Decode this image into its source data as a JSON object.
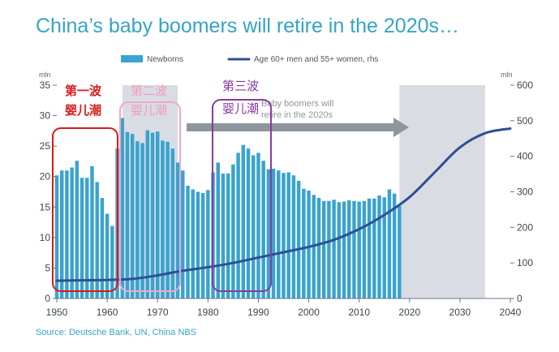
{
  "page": {
    "title": "China’s baby boomers will retire in the 2020s…",
    "source": "Source: Deutsche Bank, UN, China NBS"
  },
  "chart_data": {
    "type": "bar",
    "left_axis": {
      "unit": "mln",
      "ylim": [
        0,
        35
      ],
      "ticks": [
        0,
        5,
        10,
        15,
        20,
        25,
        30,
        35
      ]
    },
    "right_axis": {
      "unit": "mln",
      "ylim": [
        0,
        600
      ],
      "ticks": [
        0,
        100,
        200,
        300,
        400,
        500,
        600
      ]
    },
    "x_axis": {
      "xlim": [
        1950,
        2040
      ],
      "ticks": [
        1950,
        1960,
        1970,
        1980,
        1990,
        2000,
        2010,
        2020,
        2030,
        2040
      ]
    },
    "legend_placement": "top",
    "colors": {
      "bars": "#3aa3cf",
      "line": "#2e4f94",
      "shade": "#d9dde3",
      "arrow": "#8f959d"
    },
    "series": [
      {
        "name": "Newborns",
        "type": "bar",
        "axis": "left",
        "x": [
          1950,
          1951,
          1952,
          1953,
          1954,
          1955,
          1956,
          1957,
          1958,
          1959,
          1960,
          1961,
          1962,
          1963,
          1964,
          1965,
          1966,
          1967,
          1968,
          1969,
          1970,
          1971,
          1972,
          1973,
          1974,
          1975,
          1976,
          1977,
          1978,
          1979,
          1980,
          1981,
          1982,
          1983,
          1984,
          1985,
          1986,
          1987,
          1988,
          1989,
          1990,
          1991,
          1992,
          1993,
          1994,
          1995,
          1996,
          1997,
          1998,
          1999,
          2000,
          2001,
          2002,
          2003,
          2004,
          2005,
          2006,
          2007,
          2008,
          2009,
          2010,
          2011,
          2012,
          2013,
          2014,
          2015,
          2016,
          2017,
          2018
        ],
        "values": [
          20.2,
          21.0,
          21.0,
          21.5,
          22.6,
          19.8,
          19.8,
          21.7,
          19.1,
          16.5,
          13.9,
          11.9,
          24.6,
          29.6,
          27.3,
          27.0,
          25.8,
          25.5,
          27.6,
          27.2,
          27.4,
          25.9,
          25.7,
          24.6,
          22.3,
          21.0,
          18.5,
          17.9,
          17.5,
          17.3,
          17.8,
          20.7,
          22.3,
          20.5,
          20.5,
          22.0,
          23.9,
          25.2,
          24.6,
          23.5,
          23.9,
          22.6,
          21.2,
          21.3,
          21.0,
          20.6,
          20.7,
          20.2,
          19.3,
          18.0,
          17.7,
          17.0,
          16.5,
          16.0,
          16.0,
          16.2,
          15.8,
          15.9,
          16.1,
          16.0,
          15.9,
          16.0,
          16.4,
          16.4,
          16.9,
          16.6,
          17.9,
          17.2,
          15.2
        ]
      },
      {
        "name": "Age 60+ men and 55+ women, rhs",
        "type": "line",
        "axis": "right",
        "x": [
          1950,
          1955,
          1960,
          1965,
          1970,
          1975,
          1980,
          1985,
          1990,
          1995,
          2000,
          2005,
          2010,
          2015,
          2020,
          2025,
          2030,
          2035,
          2040
        ],
        "values": [
          50,
          51,
          52,
          55,
          65,
          78,
          88,
          100,
          115,
          130,
          145,
          165,
          195,
          235,
          285,
          355,
          425,
          465,
          478
        ]
      }
    ],
    "shaded_regions": [
      {
        "x": [
          1963,
          1974
        ]
      },
      {
        "x": [
          2018,
          2035
        ]
      }
    ],
    "annotations": {
      "arrow_label": [
        "Baby boomers will",
        "retire in the 2020s"
      ],
      "wave1": [
        "第一波",
        "婴儿潮"
      ],
      "wave2": [
        "第二波",
        "婴儿潮"
      ],
      "wave3": [
        "第三波",
        "婴儿潮"
      ]
    }
  }
}
